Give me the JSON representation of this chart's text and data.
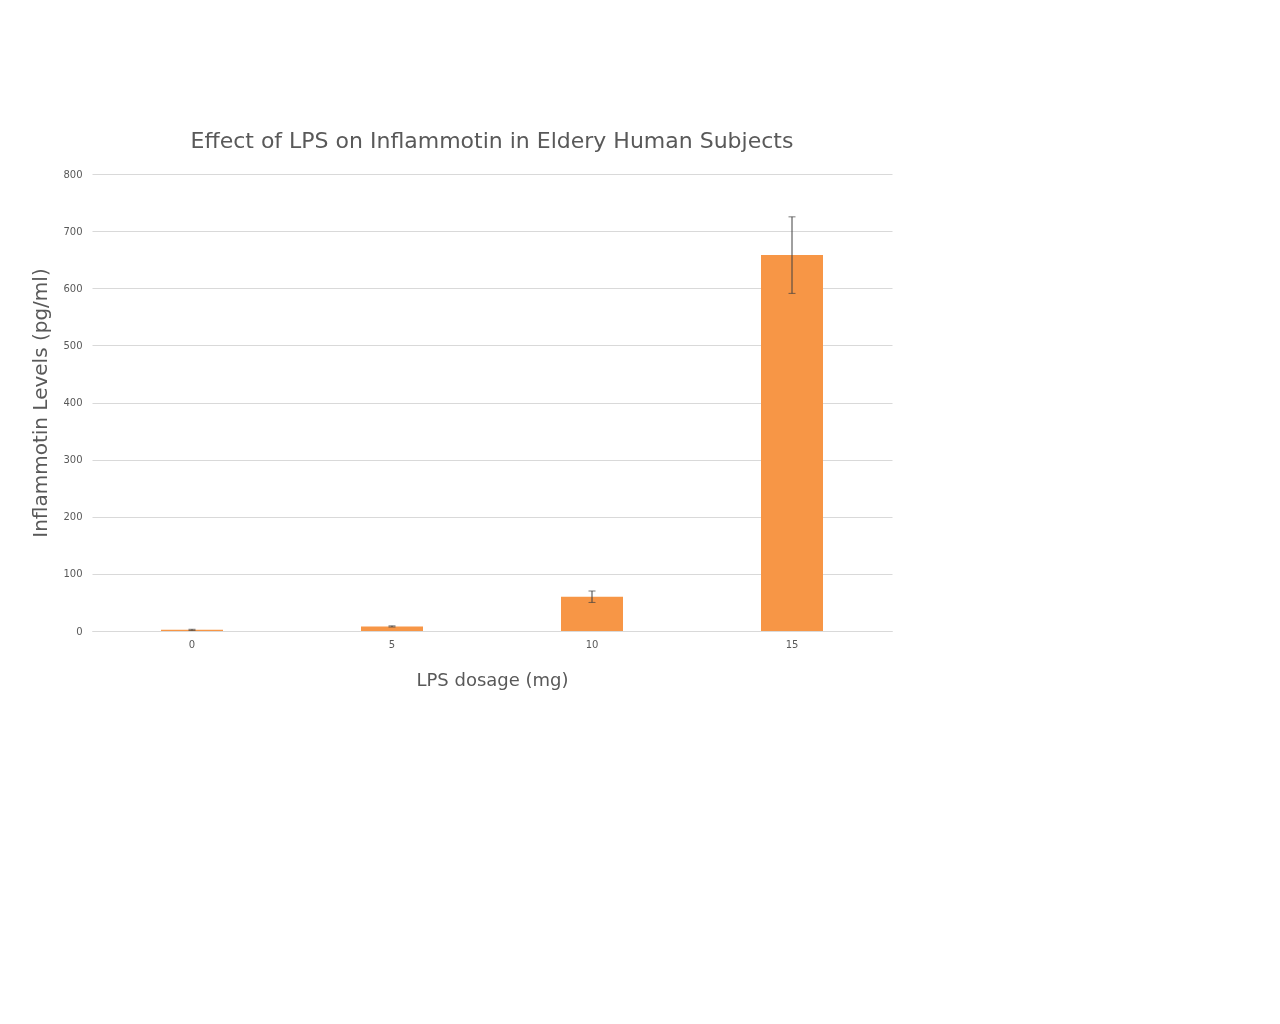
{
  "chart_data": {
    "type": "bar",
    "title": "Effect of LPS on Inflammotin in Eldery Human Subjects",
    "xlabel": "LPS dosage (mg)",
    "ylabel": "Inflammotin Levels (pg/ml)",
    "categories": [
      "0",
      "5",
      "10",
      "15"
    ],
    "values": [
      2,
      8,
      60,
      658
    ],
    "errors": [
      1,
      1,
      10,
      67
    ],
    "color": "#f79646",
    "ylim": [
      0,
      800
    ],
    "yticks": [
      0,
      100,
      200,
      300,
      400,
      500,
      600,
      700,
      800
    ],
    "grid": "y"
  }
}
